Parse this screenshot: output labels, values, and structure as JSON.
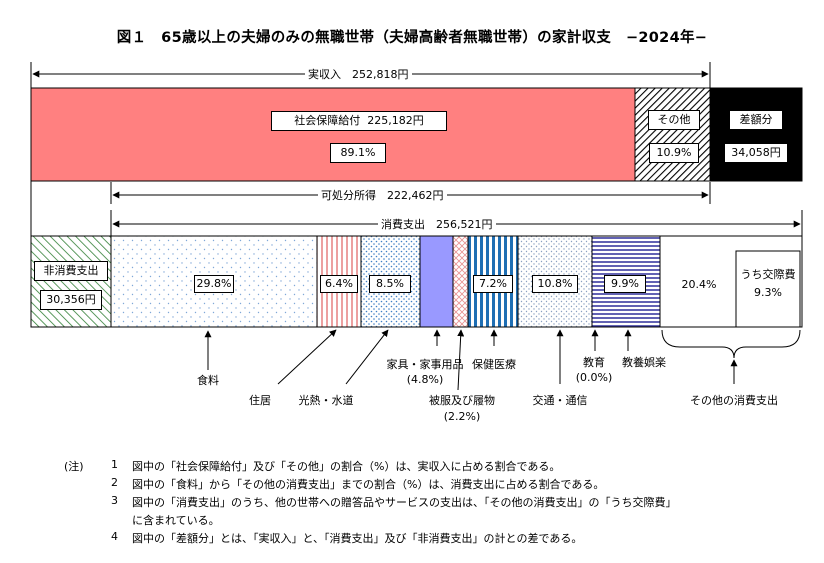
{
  "title": "図１　65歳以上の夫婦のみの無職世帯（夫婦高齢者無職世帯）の家計収支　−2024年−",
  "income_bracket": "実収入　252,818円",
  "disposable_bracket": "可処分所得　222,462円",
  "consumption_bracket": "消費支出　256,521円",
  "income_segments": {
    "social_security": {
      "name": "社会保障給付",
      "amount": "225,182円",
      "pct": "89.1%"
    },
    "other": {
      "name": "その他",
      "pct": "10.9%"
    },
    "difference": {
      "name": "差額分",
      "amount": "34,058円"
    }
  },
  "non_consumption": {
    "name": "非消費支出",
    "amount": "30,356円"
  },
  "expense_pct": {
    "food": "29.8%",
    "housing": "6.4%",
    "utilities": "8.5%",
    "clothing_area": "",
    "medical": "7.2%",
    "transport": "10.8%",
    "recreation": "9.9%",
    "other": "20.4%"
  },
  "social_expenses": {
    "name": "うち交際費",
    "pct": "9.3%"
  },
  "callouts": {
    "food": "食料",
    "housing": "住居",
    "utilities": "光熱・水道",
    "furniture": "家具・家事用品",
    "furniture_pct": "(4.8%)",
    "clothing": "被服及び履物",
    "clothing_pct": "(2.2%)",
    "medical": "保健医療",
    "transport": "交通・通信",
    "education": "教育",
    "education_pct": "(0.0%)",
    "recreation": "教養娯楽",
    "other": "その他の消費支出"
  },
  "notes": {
    "marker": "(注)",
    "n1_num": "1",
    "n1": "図中の「社会保障給付」及び「その他」の割合（%）は、実収入に占める割合である。",
    "n2_num": "2",
    "n2": "図中の「食料」から「その他の消費支出」までの割合（%）は、消費支出に占める割合である。",
    "n3_num": "3",
    "n3": "図中の「消費支出」のうち、他の世帯への贈答品やサービスの支出は、「その他の消費支出」の「うち交際費」",
    "n3b": "に含まれている。",
    "n4_num": "4",
    "n4": "図中の「差額分」とは、「実収入」と、「消費支出」及び「非消費支出」の計との差である。"
  },
  "chart_data": {
    "type": "bar",
    "title": "図１　65歳以上の夫婦のみの無職世帯（夫婦高齢者無職世帯）の家計収支　−2024年−",
    "unit": "円",
    "income": {
      "total": 252818,
      "segments": [
        {
          "name": "社会保障給付",
          "value": 225182,
          "share": 89.1
        },
        {
          "name": "その他",
          "share": 10.9
        }
      ],
      "difference": 34058,
      "disposable_income": 222462
    },
    "expenditure": {
      "consumption_total": 256521,
      "non_consumption": 30356,
      "consumption_breakdown": [
        {
          "name": "食料",
          "share": 29.8
        },
        {
          "name": "住居",
          "share": 6.4
        },
        {
          "name": "光熱・水道",
          "share": 8.5
        },
        {
          "name": "家具・家事用品",
          "share": 4.8
        },
        {
          "name": "被服及び履物",
          "share": 2.2
        },
        {
          "name": "保健医療",
          "share": 7.2
        },
        {
          "name": "交通・通信",
          "share": 10.8
        },
        {
          "name": "教育",
          "share": 0.0
        },
        {
          "name": "教養娯楽",
          "share": 9.9
        },
        {
          "name": "その他の消費支出",
          "share": 20.4,
          "sub": {
            "name": "うち交際費",
            "share": 9.3
          }
        }
      ]
    },
    "colors": {
      "social_security": "#ff8080",
      "difference": "#000000",
      "furniture": "#9999ff",
      "medical_stripe": "#1f6fb4",
      "non_consumption_hatch": "#2e7d32",
      "housing_stripe": "#e06060",
      "recreation_stripe": "#3a3aa0"
    }
  }
}
